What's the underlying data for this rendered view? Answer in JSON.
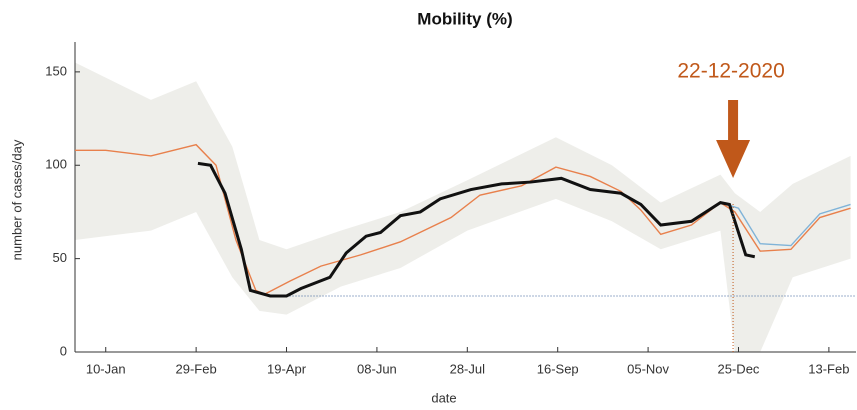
{
  "chart_data": {
    "type": "line",
    "title": "Mobility (%)",
    "y_label": "number of cases/day",
    "x_label": "date",
    "xlim": [
      -17,
      415
    ],
    "ylim": [
      0,
      166
    ],
    "yticks": [
      0,
      50,
      100,
      150
    ],
    "xticks": [
      {
        "value": 0,
        "label": "10-Jan"
      },
      {
        "value": 50,
        "label": "29-Feb"
      },
      {
        "value": 100,
        "label": "19-Apr"
      },
      {
        "value": 150,
        "label": "08-Jun"
      },
      {
        "value": 200,
        "label": "28-Jul"
      },
      {
        "value": 250,
        "label": "16-Sep"
      },
      {
        "value": 300,
        "label": "05-Nov"
      },
      {
        "value": 350,
        "label": "25-Dec"
      },
      {
        "value": 400,
        "label": "13-Feb"
      }
    ],
    "band": {
      "color": "#eeeeea",
      "x": [
        -17,
        25,
        50,
        70,
        85,
        100,
        130,
        163,
        200,
        249,
        280,
        307,
        340,
        348,
        362,
        380,
        412
      ],
      "upper": [
        155,
        135,
        145,
        110,
        60,
        55,
        65,
        75,
        92,
        115,
        100,
        80,
        95,
        85,
        75,
        90,
        105
      ],
      "lower": [
        60,
        65,
        75,
        40,
        22,
        20,
        35,
        45,
        65,
        82,
        70,
        55,
        65,
        0,
        0,
        40,
        50
      ]
    },
    "series": [
      {
        "color": "#e8804c",
        "x": [
          -17,
          0,
          25,
          50,
          61,
          72,
          83,
          88,
          102,
          119,
          141,
          163,
          191,
          207,
          230,
          249,
          268,
          285,
          296,
          307,
          324,
          340,
          348,
          362,
          379,
          395,
          412
        ],
        "values": [
          108,
          108,
          105,
          111,
          100,
          60,
          33,
          31,
          38,
          46,
          52,
          59,
          72,
          84,
          89,
          99,
          94,
          86,
          76,
          63,
          68,
          80,
          75,
          54,
          55,
          72,
          77
        ]
      },
      {
        "color": "#7fb3d8",
        "x": [
          340,
          350,
          362,
          379,
          395,
          412
        ],
        "values": [
          80,
          77,
          58,
          57,
          74,
          79
        ]
      },
      {
        "color": "#111111",
        "x": [
          51,
          58,
          66,
          75,
          80,
          91,
          100,
          108,
          124,
          133,
          144,
          152,
          163,
          174,
          185,
          202,
          219,
          235,
          252,
          268,
          285,
          296,
          307,
          324,
          340,
          345,
          354,
          359
        ],
        "values": [
          101,
          100,
          85,
          55,
          33,
          30,
          30,
          34,
          40,
          53,
          62,
          64,
          73,
          75,
          82,
          87,
          90,
          91,
          93,
          87,
          85,
          79,
          68,
          70,
          80,
          79,
          52,
          51
        ]
      }
    ],
    "reference_line": {
      "value": 30,
      "color": "#3a5f9a"
    },
    "annotation": {
      "text": "22-12-2020",
      "x": 347,
      "color": "#c0581a"
    }
  }
}
